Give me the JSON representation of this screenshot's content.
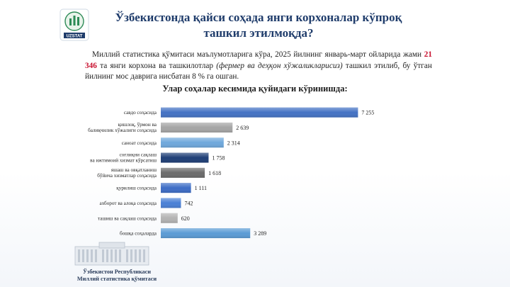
{
  "logo_text": "UZSTAT",
  "title": "Ўзбекистонда қайси соҳада янги корхоналар кўпроқ ташкил этилмоқда?",
  "paragraph": {
    "part1": "Миллий статистика қўмитаси маълумотларига кўра, 2025 йилнинг январь-март ойларида жами ",
    "highlight": "21 346",
    "part2": " та янги корхона ва ташкилотлар ",
    "italic": "(фермер ва деҳқон хўжаликларисиз)",
    "part3": " ташкил этилиб, бу ўтган йилнинг мос даврига нисбатан 8 % га ошган."
  },
  "subtitle": "Улар соҳалар кесимида қуйидаги кўринишда:",
  "chart_data": {
    "type": "bar",
    "orientation": "horizontal",
    "categories": [
      [
        "савдо соҳасида"
      ],
      [
        "қишлоқ, ўрмон ва",
        "балиқчилик хўжалиги соҳасида"
      ],
      [
        "саноат соҳасида"
      ],
      [
        "соғлиқни сақлаш",
        "ва ижтимоий хизмат кўрсатиш"
      ],
      [
        "яшаш ва овқатланиш",
        "бўйича хизматлар соҳасида"
      ],
      [
        "қурилиш  соҳасида"
      ],
      [
        "ахборот ва алоқа соҳасида"
      ],
      [
        "ташиш ва сақлаш соҳасида"
      ],
      [
        "бошқа соҳаларда"
      ]
    ],
    "values": [
      7255,
      2639,
      2314,
      1758,
      1618,
      1111,
      742,
      620,
      3289
    ],
    "value_labels": [
      "7 255",
      "2 639",
      "2 314",
      "1 758",
      "1 618",
      "1 111",
      "742",
      "620",
      "3 289"
    ],
    "bar_colors": [
      "#4472c4",
      "#a5a5a5",
      "#6fa8dc",
      "#1f3f77",
      "#6b6b6b",
      "#3d6dc6",
      "#4a80d6",
      "#b3b3b3",
      "#5b9bd5"
    ],
    "xlim": [
      0,
      8000
    ],
    "x_ticks": [
      0,
      1000,
      2000,
      3000,
      4000,
      5000,
      6000,
      7000,
      8000
    ],
    "x_tick_labels": [
      "0",
      "1 000",
      "2 000",
      "3 000",
      "4 000",
      "5 000",
      "6 000",
      "7 000",
      "8 000"
    ],
    "grid": false
  },
  "footer": {
    "line1": "Ўзбекистон  Республикаси",
    "line2": "Миллий  статистика  қўмитаси"
  }
}
